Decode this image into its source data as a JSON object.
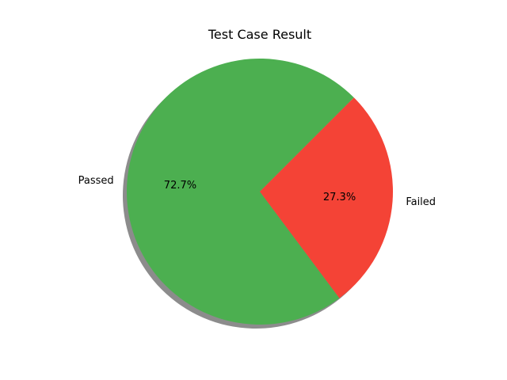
{
  "chart_data": {
    "type": "pie",
    "title": "Test Case Result",
    "categories": [
      "Passed",
      "Failed"
    ],
    "values": [
      72.7,
      27.3
    ],
    "percent_labels": [
      "72.7%",
      "27.3%"
    ],
    "colors": [
      "#4caf50",
      "#f44336"
    ],
    "start_angle_deg": 45,
    "shadow": true,
    "legend": "none"
  }
}
